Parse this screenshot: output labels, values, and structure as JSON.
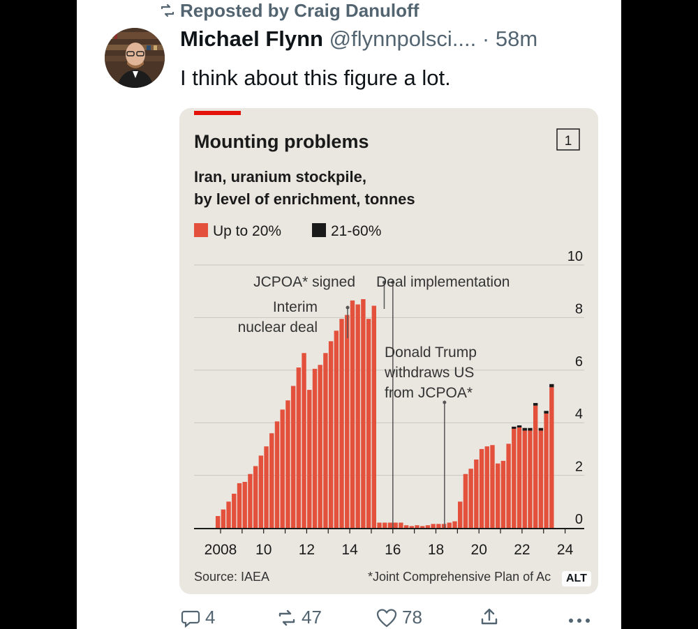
{
  "repost_label": "Reposted by Craig Danuloff",
  "author": {
    "name": "Michael Flynn",
    "handle": "@flynnpolsci....",
    "time": "· 58m"
  },
  "post_text": "I think about this figure a lot.",
  "alt_badge": "ALT",
  "figure": {
    "title": "Mounting problems",
    "number_box": "1",
    "subtitle_line1": "Iran, uranium stockpile,",
    "subtitle_line2": "by level of enrichment, tonnes",
    "source": "Source: IAEA",
    "footnote": "*Joint Comprehensive Plan of Ac",
    "annotations": {
      "jcpoa_signed": "JCPOA* signed",
      "deal_implementation": "Deal implementation",
      "interim_line1": "Interim",
      "interim_line2": "nuclear deal",
      "trump_line1": "Donald Trump",
      "trump_line2": "withdraws US",
      "trump_line3": "from JCPOA*"
    }
  },
  "chart_data": {
    "type": "bar",
    "ylim": [
      0,
      10
    ],
    "y_ticks": [
      "0",
      "2",
      "4",
      "6",
      "8",
      "10"
    ],
    "x_tick_labels": [
      "2008",
      "10",
      "12",
      "14",
      "16",
      "18",
      "20",
      "22",
      "24"
    ],
    "x_tick_years": [
      2008,
      2010,
      2012,
      2014,
      2016,
      2018,
      2020,
      2022,
      2024
    ],
    "x_start": 2007.75,
    "x_step": 0.25,
    "colors": {
      "up_to_20": "#e3513d",
      "21_60": "#1a1a1a"
    },
    "series": [
      {
        "name": "Up to 20%",
        "values": [
          0.45,
          0.7,
          1.0,
          1.3,
          1.7,
          1.75,
          2.05,
          2.35,
          2.75,
          3.1,
          3.6,
          4.05,
          4.5,
          4.85,
          5.4,
          6.1,
          6.65,
          5.25,
          6.05,
          6.2,
          6.65,
          7.1,
          7.5,
          7.95,
          8.1,
          8.65,
          8.5,
          8.7,
          7.95,
          8.45,
          0.2,
          0.2,
          0.2,
          0.2,
          0.2,
          0.1,
          0.07,
          0.1,
          0.07,
          0.1,
          0.15,
          0.15,
          0.15,
          0.2,
          0.25,
          1.0,
          2.05,
          2.25,
          2.6,
          3.0,
          3.1,
          3.15,
          2.45,
          2.55,
          3.2,
          3.8,
          3.85,
          3.7,
          3.7,
          4.65,
          3.7,
          4.35,
          5.35
        ]
      },
      {
        "name": "21-60%",
        "values": [
          0,
          0,
          0,
          0,
          0,
          0,
          0,
          0,
          0,
          0,
          0,
          0,
          0,
          0,
          0,
          0,
          0,
          0,
          0,
          0,
          0,
          0,
          0,
          0,
          0,
          0,
          0,
          0,
          0,
          0,
          0,
          0,
          0,
          0,
          0,
          0,
          0,
          0,
          0,
          0,
          0,
          0,
          0,
          0,
          0,
          0,
          0,
          0,
          0,
          0,
          0,
          0,
          0,
          0,
          0,
          0.05,
          0.05,
          0.1,
          0.1,
          0.1,
          0.1,
          0.1,
          0.12
        ]
      }
    ],
    "annotations": [
      {
        "label": "JCPOA* signed",
        "x": 2015.6
      },
      {
        "label": "Deal implementation",
        "x": 2016.0
      },
      {
        "label": "Interim nuclear deal",
        "x": 2013.9
      },
      {
        "label": "Donald Trump withdraws US from JCPOA*",
        "x": 2018.4
      }
    ]
  },
  "actions": {
    "replies": "4",
    "reposts": "47",
    "likes": "78"
  },
  "icons": [
    "repost-icon",
    "reply-icon",
    "like-icon",
    "share-icon",
    "more-icon"
  ]
}
